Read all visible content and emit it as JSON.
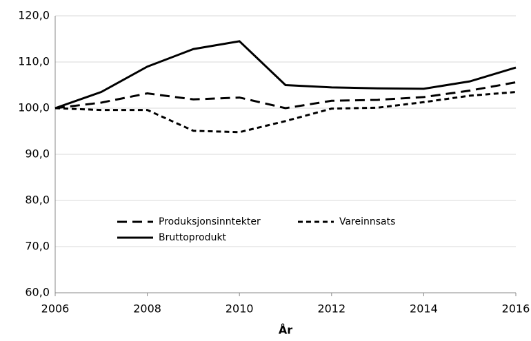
{
  "chart_data": {
    "type": "line",
    "x": [
      2006,
      2007,
      2008,
      2009,
      2010,
      2011,
      2012,
      2013,
      2014,
      2015,
      2016
    ],
    "series": [
      {
        "name": "Produksjonsinntekter",
        "color": "#000000",
        "dash": "long",
        "values": [
          100,
          101.2,
          103.2,
          101.9,
          102.3,
          100,
          101.6,
          101.8,
          102.4,
          103.8,
          105.6
        ]
      },
      {
        "name": "Vareinnsats",
        "color": "#000000",
        "dash": "short",
        "values": [
          100,
          99.6,
          99.6,
          95.1,
          94.8,
          97.2,
          99.9,
          100.1,
          101.3,
          102.7,
          103.5
        ]
      },
      {
        "name": "Bruttoprodukt",
        "color": "#000000",
        "dash": "solid",
        "values": [
          100,
          103.5,
          109,
          112.8,
          114.5,
          105,
          104.5,
          104.3,
          104.2,
          105.8,
          108.8
        ]
      }
    ],
    "x_label": "År",
    "xlim": [
      2006,
      2016
    ],
    "xticks": [
      2006,
      2008,
      2010,
      2012,
      2014,
      2016
    ],
    "ylim": [
      60,
      120
    ],
    "yticks": [
      {
        "value": 60,
        "label": "60,0"
      },
      {
        "value": 70,
        "label": "70,0"
      },
      {
        "value": 80,
        "label": "80,0"
      },
      {
        "value": 90,
        "label": "90,0"
      },
      {
        "value": 100,
        "label": "100,0"
      },
      {
        "value": 110,
        "label": "110,0"
      },
      {
        "value": 120,
        "label": "120,0"
      }
    ],
    "grid": true
  }
}
